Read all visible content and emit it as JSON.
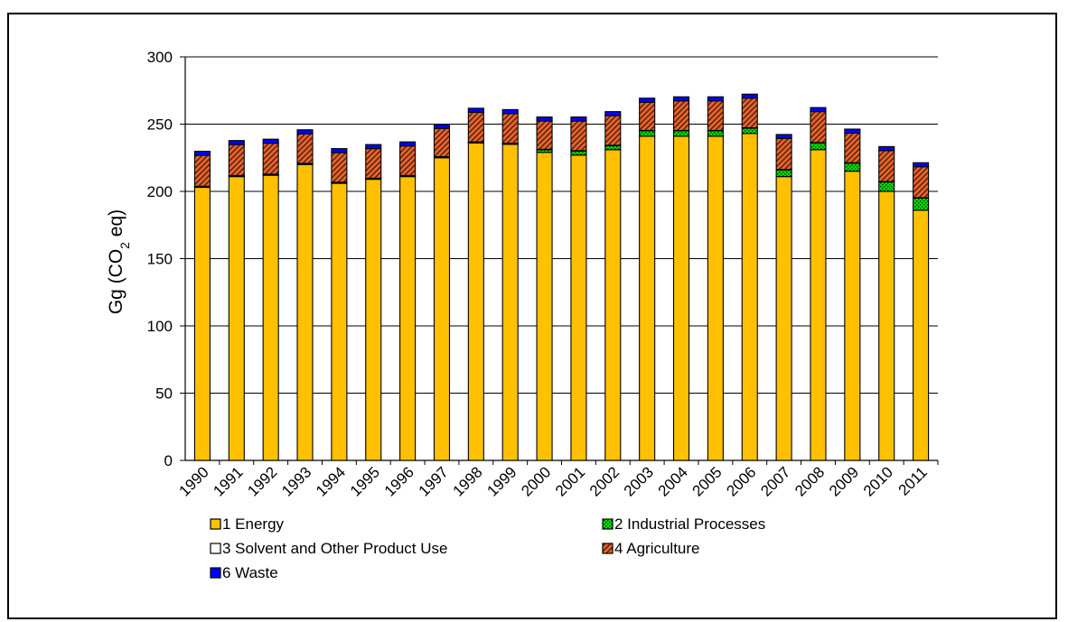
{
  "chart_data": {
    "type": "bar",
    "stacked": true,
    "categories": [
      "1990",
      "1991",
      "1992",
      "1993",
      "1994",
      "1995",
      "1996",
      "1997",
      "1998",
      "1999",
      "2000",
      "2001",
      "2002",
      "2003",
      "2004",
      "2005",
      "2006",
      "2007",
      "2008",
      "2009",
      "2010",
      "2011"
    ],
    "series": [
      {
        "name": "1 Energy",
        "color": "#FFC000",
        "pattern": "solid",
        "values": [
          203,
          211,
          212,
          220,
          206,
          209,
          211,
          225,
          236,
          235,
          229,
          227,
          231,
          241,
          241,
          241,
          243,
          211,
          231,
          215,
          200,
          186
        ]
      },
      {
        "name": "2 Industrial Processes",
        "color": "#00E000",
        "pattern": "dots",
        "values": [
          0.5,
          0.5,
          0.5,
          0.5,
          0.5,
          0.5,
          0.5,
          0.5,
          0.5,
          0.5,
          2,
          3,
          3,
          4,
          4,
          4,
          4,
          5,
          5,
          6,
          7,
          9
        ]
      },
      {
        "name": "3 Solvent and Other Product Use",
        "color": "#FFFFFF",
        "pattern": "solid",
        "values": [
          0.3,
          0.3,
          0.3,
          0.3,
          0.3,
          0.3,
          0.3,
          0.3,
          0.3,
          0.3,
          0.3,
          0.3,
          0.3,
          0.3,
          0.3,
          0.3,
          0.3,
          0.3,
          0.3,
          0.3,
          0.3,
          0.3
        ]
      },
      {
        "name": "4 Agriculture",
        "color": "#E8622A",
        "pattern": "hatch",
        "values": [
          23,
          23,
          23,
          22,
          22,
          22,
          22,
          21,
          22,
          22,
          21,
          22,
          22,
          21,
          22,
          22,
          22,
          23,
          23,
          22,
          23,
          23
        ]
      },
      {
        "name": "6 Waste",
        "color": "#0000FF",
        "pattern": "solid",
        "values": [
          3,
          3,
          3,
          3,
          3,
          3,
          3,
          3,
          3,
          3,
          3,
          3,
          3,
          3,
          3,
          3,
          3,
          3,
          3,
          3,
          3,
          3
        ]
      }
    ],
    "ylabel": "Gg (CO",
    "ylabel_sub": "2",
    "ylabel_tail": " eq)",
    "ylim": [
      0,
      300
    ],
    "yticks": [
      0,
      50,
      100,
      150,
      200,
      250,
      300
    ],
    "grid": true,
    "legend_position": "bottom"
  }
}
